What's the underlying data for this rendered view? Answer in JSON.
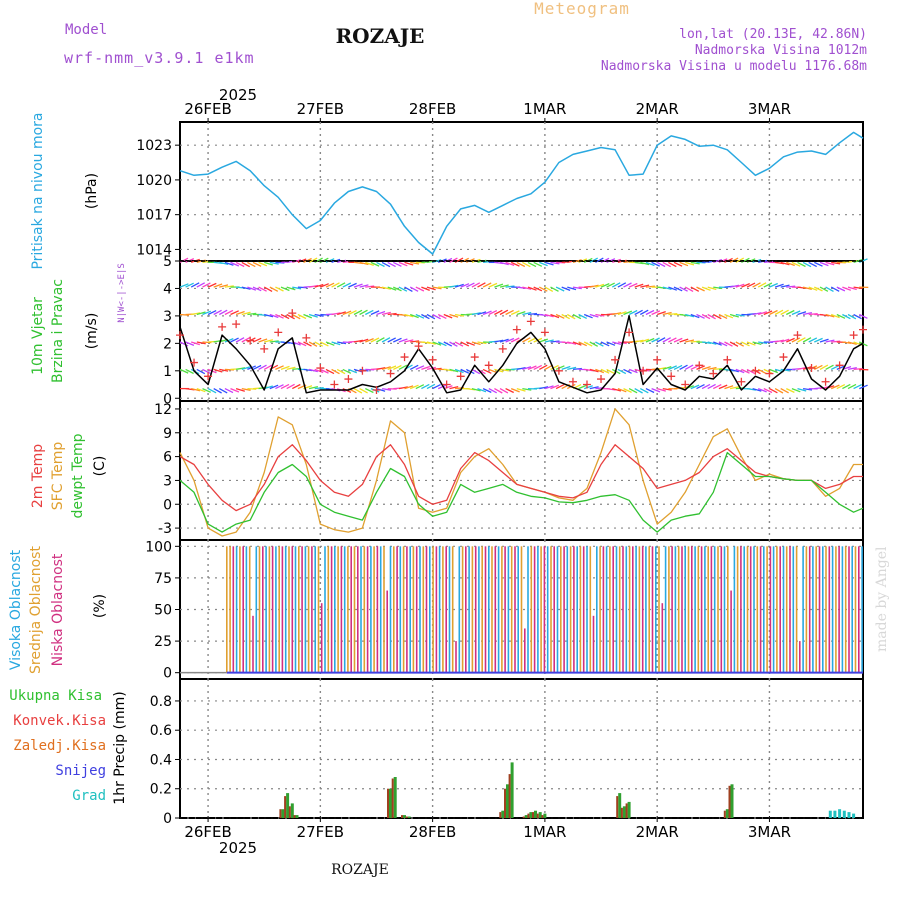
{
  "header": {
    "model_label": "Model",
    "model_name": "wrf-nmm_v3.9.1 e1km",
    "title": "Meteogram",
    "station": "ROZAJE",
    "coords": "lon,lat (20.13E, 42.86N)",
    "elevation": "Nadmorska Visina 1012m",
    "model_elevation": "Nadmorska Visina u modelu 1176.68m"
  },
  "time_axis": {
    "year": "2025",
    "days": [
      "26FEB",
      "27FEB",
      "28FEB",
      "1MAR",
      "2MAR",
      "3MAR"
    ],
    "bottom_station": "ROZAJE",
    "credit": "made by Angel"
  },
  "colors": {
    "pressure": "#29a8e0",
    "wind_speed": "#000000",
    "wind_gust": "#e83a3a",
    "temp_2m": "#e84040",
    "temp_sfc": "#e0a030",
    "dewpoint": "#30c030",
    "cloud_high": "#29a8e0",
    "cloud_mid": "#e0a030",
    "cloud_low": "#d03080",
    "precip_total": "#30a030",
    "precip_conv": "#e84040",
    "precip_frz": "#e07020",
    "precip_snow": "#4040e0",
    "precip_grad": "#20c0c0"
  },
  "panels": {
    "pressure": {
      "label": "Pritisak na nivou mora",
      "unit": "(hPa)"
    },
    "wind": {
      "label1": "10m Vjetar",
      "label2": "Brzina i Pravac",
      "unit": "(m/s)",
      "rose": "N\n|\nW <-|-> E\n|\nS"
    },
    "temp": {
      "label1": "2m Temp",
      "label2": "SFC Temp",
      "label3": "dewpt Temp",
      "unit": "(C)"
    },
    "cloud": {
      "label1": "Visoka Oblacnost",
      "label2": "Srednja Oblacnost",
      "label3": "Niska Oblacnost",
      "unit": "(%)"
    },
    "precip": {
      "unit": "1hr Precip (mm)",
      "legend": [
        "Ukupna Kisa",
        "Konvek.Kisa",
        "Zaledj.Kisa",
        "Snijeg",
        "Grad"
      ]
    }
  },
  "chart_data": [
    {
      "type": "line",
      "id": "pressure",
      "ylabel": "(hPa)",
      "yticks": [
        1014,
        1017,
        1020,
        1023
      ],
      "ylim": [
        1013,
        1025
      ],
      "grid": true,
      "x_hours": [
        0,
        3,
        6,
        9,
        12,
        15,
        18,
        21,
        24,
        27,
        30,
        33,
        36,
        39,
        42,
        45,
        48,
        51,
        54,
        57,
        60,
        63,
        66,
        69,
        72,
        75,
        78,
        81,
        84,
        87,
        90,
        93,
        96,
        99,
        102,
        105,
        108,
        111,
        114,
        117,
        120,
        123,
        126,
        129,
        132,
        135,
        138,
        141,
        144,
        146
      ],
      "series": [
        {
          "values": [
            1020.8,
            1020.4,
            1020.5,
            1021.1,
            1021.6,
            1020.8,
            1019.5,
            1018.5,
            1017.0,
            1015.8,
            1016.5,
            1018.0,
            1019.0,
            1019.4,
            1019.0,
            1017.9,
            1016.0,
            1014.6,
            1013.6,
            1016.0,
            1017.5,
            1017.8,
            1017.2,
            1017.8,
            1018.4,
            1018.8,
            1019.8,
            1021.5,
            1022.2,
            1022.5,
            1022.8,
            1022.6,
            1020.4,
            1020.5,
            1023.0,
            1023.8,
            1023.5,
            1022.9,
            1023.0,
            1022.6,
            1021.5,
            1020.4,
            1021.0,
            1022.0,
            1022.4,
            1022.5,
            1022.2,
            1023.2,
            1024.1,
            1023.6
          ]
        }
      ]
    },
    {
      "type": "line",
      "id": "wind",
      "ylabel": "(m/s)",
      "yticks": [
        0,
        1,
        2,
        3,
        4,
        5
      ],
      "ylim": [
        -0.1,
        5
      ],
      "grid": true,
      "x_hours": [
        0,
        3,
        6,
        9,
        12,
        15,
        18,
        21,
        24,
        27,
        30,
        33,
        36,
        39,
        42,
        45,
        48,
        51,
        54,
        57,
        60,
        63,
        66,
        69,
        72,
        75,
        78,
        81,
        84,
        87,
        90,
        93,
        96,
        99,
        102,
        105,
        108,
        111,
        114,
        117,
        120,
        123,
        126,
        129,
        132,
        135,
        138,
        141,
        144,
        146
      ],
      "series": [
        {
          "values": [
            2.6,
            1.0,
            0.5,
            2.3,
            1.8,
            1.2,
            0.3,
            1.8,
            2.2,
            0.2,
            0.3,
            0.3,
            0.3,
            0.5,
            0.4,
            0.6,
            1.0,
            1.8,
            1.1,
            0.2,
            0.3,
            1.2,
            0.6,
            1.2,
            2.0,
            2.4,
            1.8,
            0.6,
            0.4,
            0.2,
            0.3,
            0.9,
            3.0,
            0.5,
            1.1,
            0.5,
            0.3,
            0.8,
            0.7,
            1.2,
            0.3,
            0.8,
            0.6,
            1.0,
            1.8,
            0.7,
            0.3,
            0.8,
            1.8,
            2.0
          ]
        },
        {
          "values": [
            2.3,
            1.3,
            0.8,
            2.6,
            2.7,
            2.1,
            1.8,
            2.4,
            3.1,
            2.2,
            1.1,
            0.5,
            0.7,
            1.0,
            0.3,
            0.9,
            1.5,
            1.9,
            1.4,
            0.5,
            0.8,
            1.5,
            1.2,
            1.8,
            2.5,
            2.8,
            2.4,
            1.0,
            0.6,
            0.5,
            0.7,
            1.4,
            2.4,
            1.0,
            1.4,
            0.8,
            0.5,
            1.2,
            0.9,
            1.4,
            0.6,
            1.0,
            0.9,
            1.5,
            2.3,
            1.1,
            0.6,
            1.2,
            2.3,
            2.5
          ]
        }
      ]
    },
    {
      "type": "line",
      "id": "temperature",
      "ylabel": "(C)",
      "yticks": [
        -3,
        0,
        3,
        6,
        9,
        12
      ],
      "ylim": [
        -4.5,
        13
      ],
      "grid": true,
      "x_hours": [
        0,
        3,
        6,
        9,
        12,
        15,
        18,
        21,
        24,
        27,
        30,
        33,
        36,
        39,
        42,
        45,
        48,
        51,
        54,
        57,
        60,
        63,
        66,
        69,
        72,
        75,
        78,
        81,
        84,
        87,
        90,
        93,
        96,
        99,
        102,
        105,
        108,
        111,
        114,
        117,
        120,
        123,
        126,
        129,
        132,
        135,
        138,
        141,
        144,
        146
      ],
      "series": [
        {
          "values": [
            6.0,
            5.0,
            2.5,
            0.5,
            -0.8,
            0.0,
            2.5,
            6.0,
            7.5,
            5.5,
            3.0,
            1.5,
            1.0,
            2.5,
            6.0,
            7.5,
            5.0,
            1.0,
            0.0,
            0.5,
            4.5,
            6.5,
            5.5,
            4.0,
            2.5,
            2.0,
            1.5,
            1.0,
            0.8,
            1.5,
            5.0,
            7.5,
            6.0,
            4.5,
            2.0,
            2.5,
            3.0,
            4.0,
            6.0,
            7.0,
            5.5,
            4.0,
            3.5,
            3.2,
            3.0,
            3.0,
            2.0,
            2.5,
            3.5,
            3.5
          ]
        },
        {
          "values": [
            6.5,
            3.0,
            -3.0,
            -4.0,
            -3.5,
            -1.0,
            4.0,
            11.0,
            10.0,
            5.0,
            -2.5,
            -3.2,
            -3.5,
            -3.0,
            3.0,
            10.5,
            9.0,
            -0.5,
            -1.0,
            -0.5,
            4.0,
            6.0,
            7.0,
            5.0,
            2.5,
            2.0,
            1.5,
            0.8,
            0.5,
            2.0,
            6.5,
            12.0,
            10.0,
            3.0,
            -2.5,
            -1.0,
            1.5,
            5.0,
            8.5,
            9.5,
            6.0,
            3.0,
            3.8,
            3.2,
            3.0,
            3.0,
            1.0,
            2.0,
            5.0,
            5.0
          ]
        },
        {
          "values": [
            3.0,
            1.5,
            -2.5,
            -3.5,
            -2.5,
            -2.0,
            1.5,
            4.0,
            5.0,
            3.5,
            0.0,
            -1.0,
            -1.5,
            -2.0,
            1.5,
            4.5,
            3.5,
            0.0,
            -1.5,
            -1.0,
            2.5,
            1.5,
            2.0,
            2.5,
            1.5,
            1.0,
            0.8,
            0.3,
            0.2,
            0.5,
            1.0,
            1.2,
            0.5,
            -2.0,
            -3.5,
            -2.0,
            -1.5,
            -1.2,
            1.5,
            6.5,
            5.0,
            3.5,
            3.5,
            3.2,
            3.0,
            3.0,
            1.5,
            0.0,
            -1.0,
            -0.5
          ]
        }
      ]
    },
    {
      "type": "bar",
      "id": "cloud",
      "ylabel": "(%)",
      "yticks": [
        0,
        25,
        50,
        75,
        100
      ],
      "ylim": [
        -5,
        105
      ],
      "grid": true,
      "hours_range": [
        0,
        146
      ],
      "clouds_start_hour": 10,
      "series": [
        {
          "values": [
            0,
            100,
            100,
            100,
            100
          ]
        },
        {
          "values": [
            0,
            100,
            100,
            100,
            100
          ]
        },
        {
          "values": [
            0,
            60,
            30,
            25,
            100
          ]
        }
      ]
    },
    {
      "type": "bar",
      "id": "precipitation",
      "ylabel": "1hr Precip (mm)",
      "yticks": [
        0,
        0.2,
        0.4,
        0.6,
        0.8
      ],
      "ylim": [
        0,
        0.95
      ],
      "grid": true,
      "bars": [
        {
          "x": 22,
          "total": 0.06,
          "conv": 0.06
        },
        {
          "x": 23,
          "total": 0.17,
          "conv": 0.15
        },
        {
          "x": 24,
          "total": 0.1,
          "conv": 0.08
        },
        {
          "x": 25,
          "total": 0.02,
          "conv": 0.02
        },
        {
          "x": 45,
          "total": 0.2,
          "conv": 0.2
        },
        {
          "x": 46,
          "total": 0.28,
          "conv": 0.27
        },
        {
          "x": 48,
          "total": 0.02,
          "conv": 0.02
        },
        {
          "x": 49,
          "total": 0.01,
          "conv": 0.01
        },
        {
          "x": 69,
          "total": 0.05,
          "conv": 0.04
        },
        {
          "x": 70,
          "total": 0.23,
          "conv": 0.2
        },
        {
          "x": 71,
          "total": 0.38,
          "conv": 0.3
        },
        {
          "x": 74,
          "total": 0.02,
          "conv": 0.01
        },
        {
          "x": 75,
          "total": 0.04,
          "conv": 0.03
        },
        {
          "x": 76,
          "total": 0.05,
          "conv": 0.04
        },
        {
          "x": 77,
          "total": 0.04,
          "conv": 0.03
        },
        {
          "x": 78,
          "total": 0.03,
          "conv": 0.02
        },
        {
          "x": 94,
          "total": 0.17,
          "conv": 0.15
        },
        {
          "x": 95,
          "total": 0.08,
          "conv": 0.07
        },
        {
          "x": 96,
          "total": 0.11,
          "conv": 0.1
        },
        {
          "x": 117,
          "total": 0.06,
          "conv": 0.05
        },
        {
          "x": 118,
          "total": 0.23,
          "conv": 0.22
        },
        {
          "x": 139,
          "total": 0.05,
          "conv": 0.0
        },
        {
          "x": 140,
          "total": 0.05,
          "conv": 0.0
        },
        {
          "x": 141,
          "total": 0.06,
          "conv": 0.0
        },
        {
          "x": 142,
          "total": 0.05,
          "conv": 0.0
        },
        {
          "x": 143,
          "total": 0.04,
          "conv": 0.0
        },
        {
          "x": 144,
          "total": 0.03,
          "conv": 0.0
        }
      ]
    }
  ]
}
